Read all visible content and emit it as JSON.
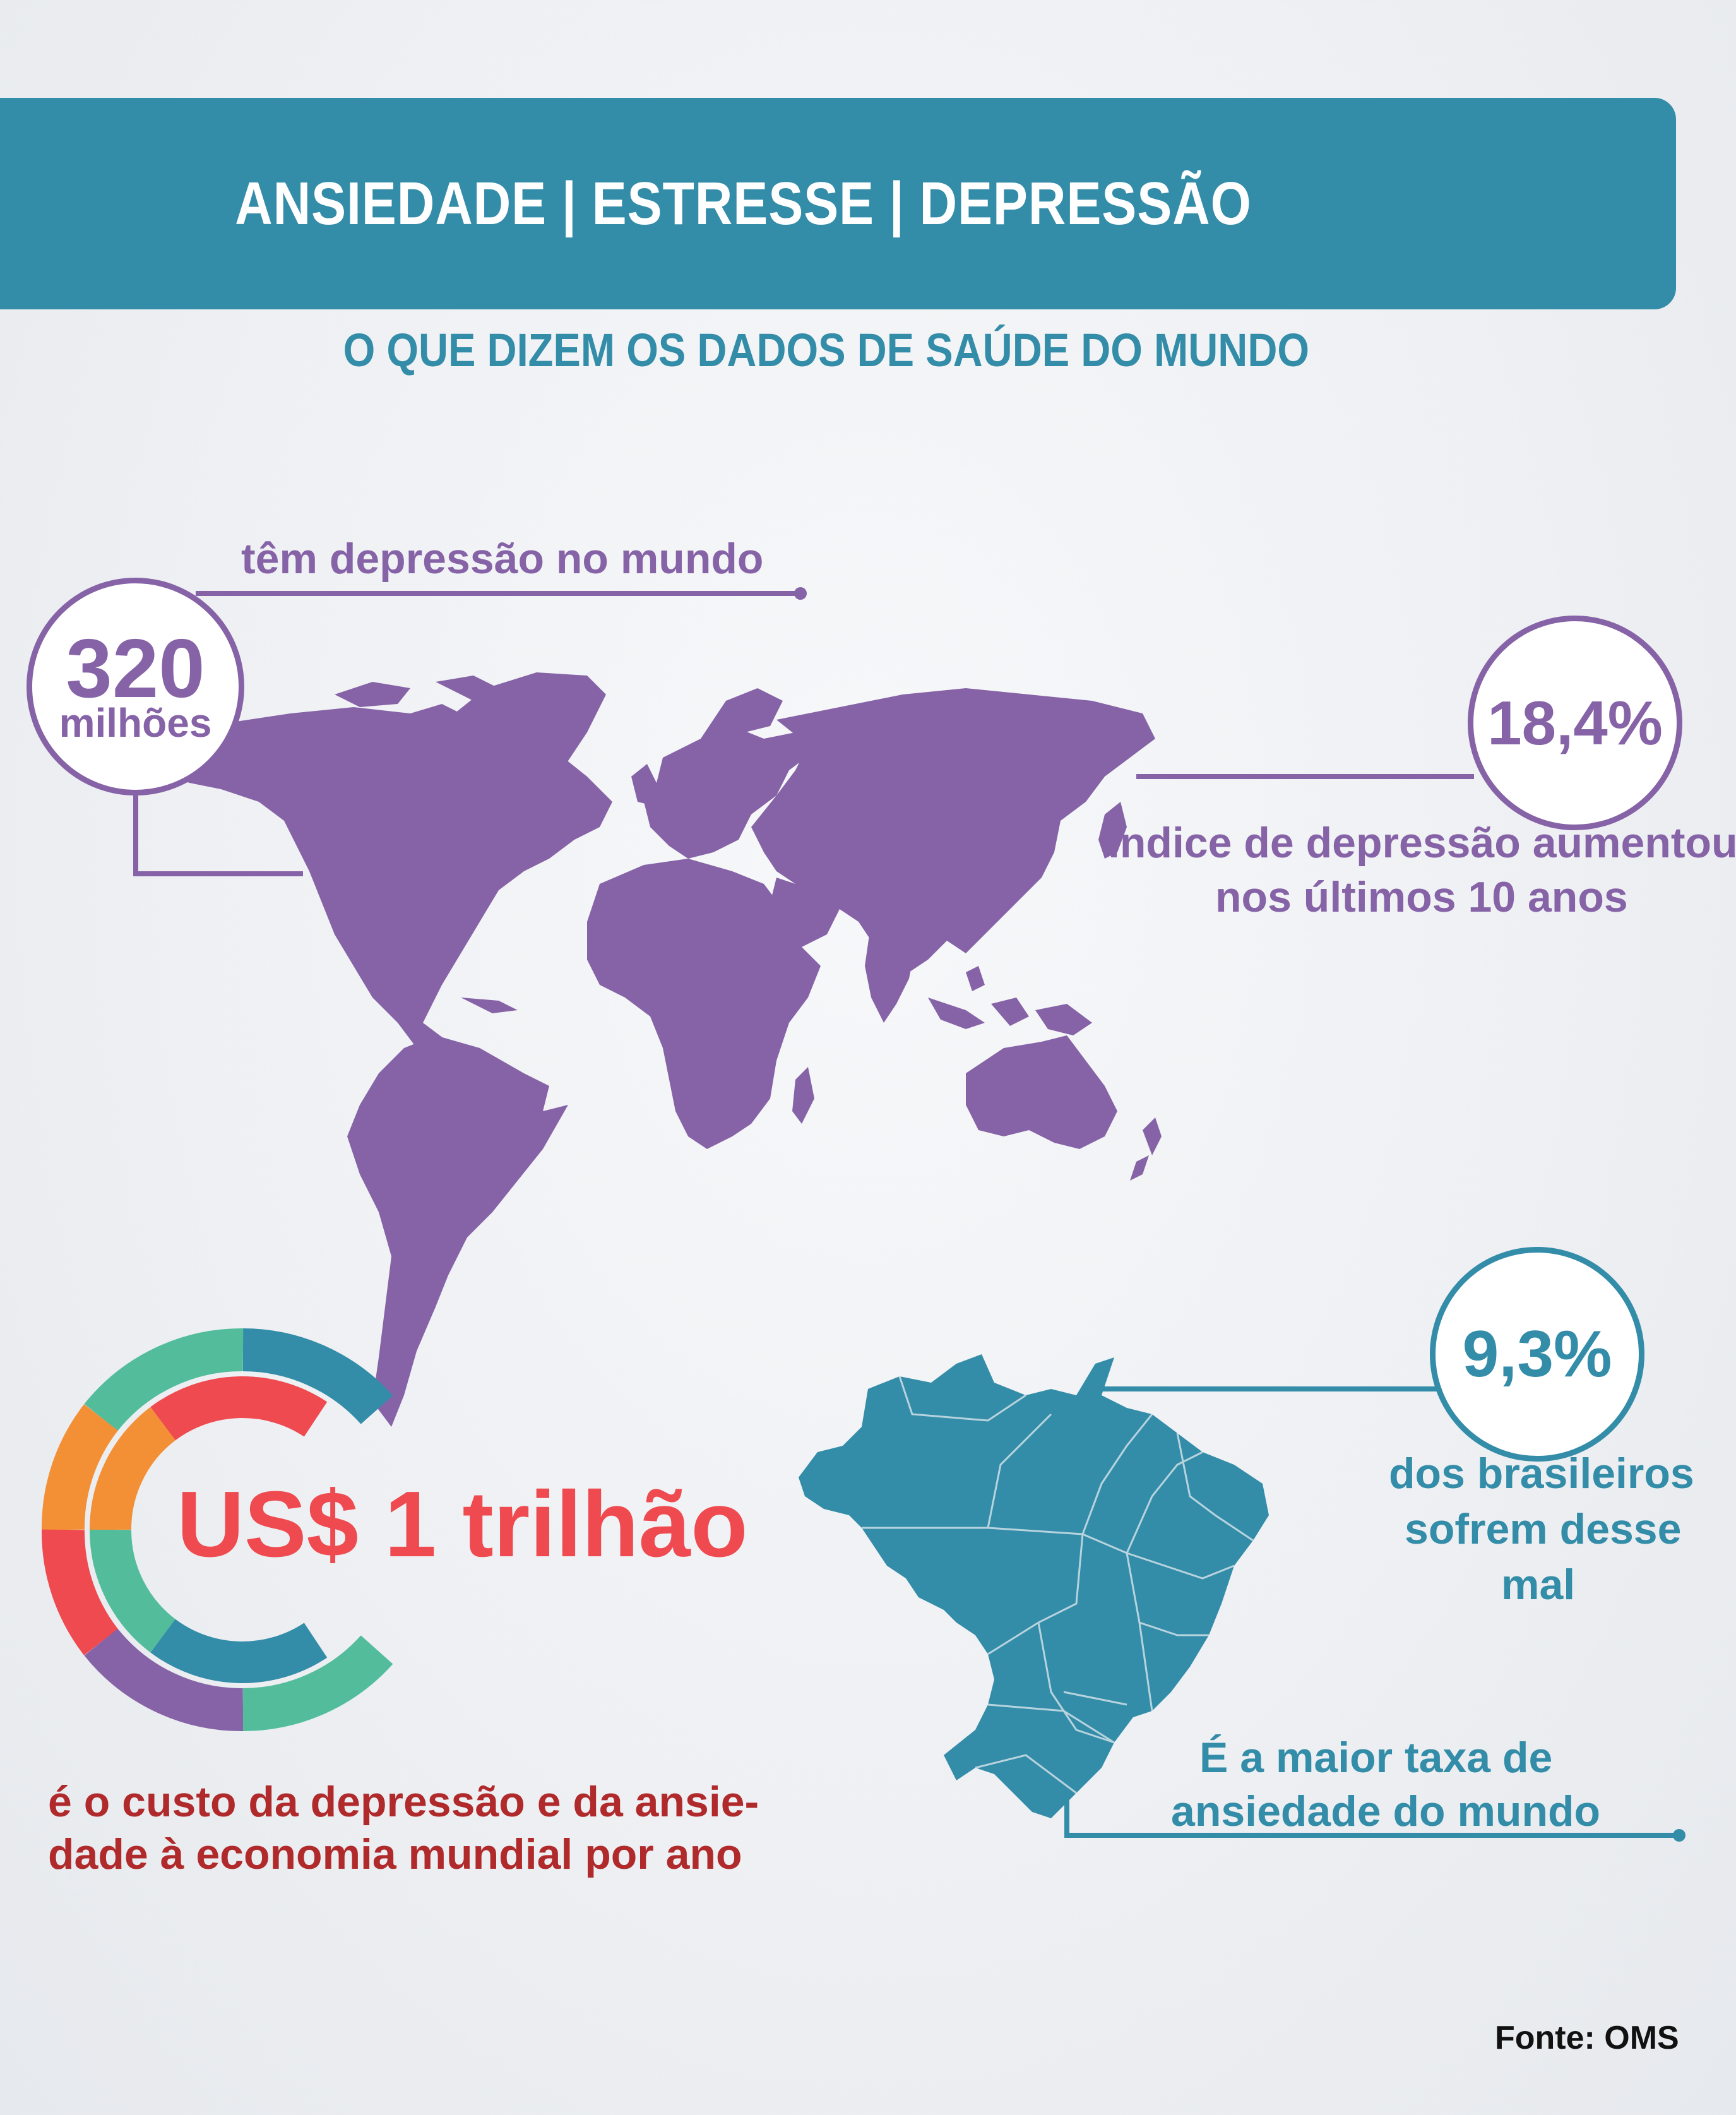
{
  "header": {
    "title": "ANSIEDADE | ESTRESSE | DEPRESSÃO",
    "subtitle": "O QUE DIZEM OS DADOS DE SAÚDE DO MUNDO"
  },
  "world_stats": {
    "people": {
      "number": "320",
      "unit": "milhões",
      "label": "têm depressão no mundo"
    },
    "increase": {
      "value": "18,4%",
      "label_line1": "índice de depressão aumentou",
      "label_line2": "nos últimos 10 anos"
    }
  },
  "economy": {
    "value": "US$ 1 trilhão",
    "label_line1": "é o custo da depressão e da ansie-",
    "label_line2": "dade à economia mundial por ano"
  },
  "brazil": {
    "value": "9,3%",
    "label_line1": "dos brasileiros",
    "label_line2": "sofrem desse",
    "label_line3": "mal",
    "note_line1": "É a maior taxa de",
    "note_line2": "ansiedade do mundo"
  },
  "source": "Fonte: OMS",
  "colors": {
    "teal": "#338ca8",
    "purple": "#8663a7",
    "red": "#ee4a4f",
    "dark_red": "#b02a2c",
    "orange": "#f39036",
    "green": "#53bd9b",
    "background": "#eef0f3"
  },
  "icons": [
    "world-map-icon",
    "brazil-map-icon",
    "ring-chart-icon"
  ]
}
